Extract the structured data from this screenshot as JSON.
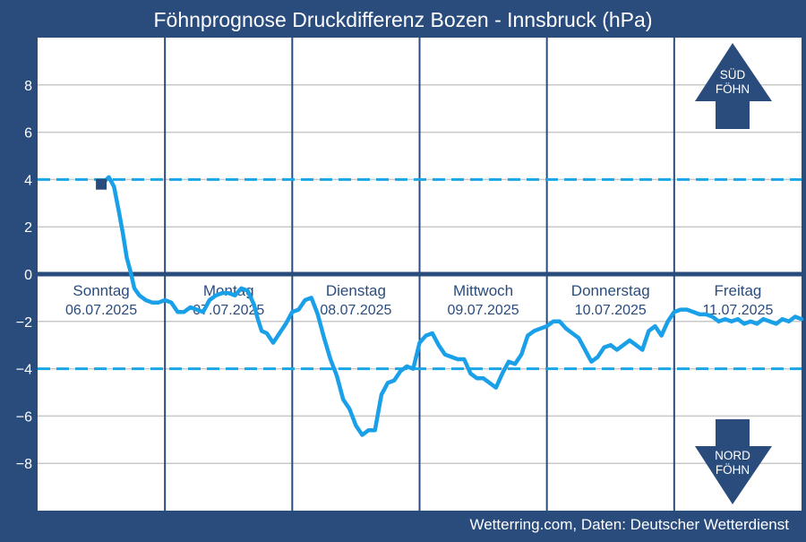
{
  "chart_data": {
    "type": "line",
    "title": "Föhnprognose Druckdifferenz Bozen - Innsbruck (hPa)",
    "ylim": [
      -10,
      10
    ],
    "yticks": [
      -8,
      -6,
      -4,
      -2,
      0,
      2,
      4,
      6,
      8
    ],
    "ytick_labels": [
      "−8",
      "−6",
      "−4",
      "−2",
      "0",
      "2",
      "4",
      "6",
      "8"
    ],
    "xlim": [
      0,
      6
    ],
    "day_separators": [
      1,
      2,
      3,
      4,
      5
    ],
    "days": [
      {
        "name": "Sonntag",
        "date": "06.07.2025",
        "x": 0.5
      },
      {
        "name": "Montag",
        "date": "07.07.2025",
        "x": 1.5
      },
      {
        "name": "Dienstag",
        "date": "08.07.2025",
        "x": 2.5
      },
      {
        "name": "Mittwoch",
        "date": "09.07.2025",
        "x": 3.5
      },
      {
        "name": "Donnerstag",
        "date": "10.07.2025",
        "x": 4.5
      },
      {
        "name": "Freitag",
        "date": "11.07.2025",
        "x": 5.5
      }
    ],
    "threshold_lines": [
      4,
      -4
    ],
    "zero_line": 0,
    "grid": true,
    "current_marker": {
      "x": 0.5,
      "y": 3.8
    },
    "series": [
      {
        "x": [
          0.5,
          0.56,
          0.6,
          0.64,
          0.67,
          0.7,
          0.73,
          0.76,
          0.8,
          0.85,
          0.9,
          0.95,
          1.0,
          1.05,
          1.1,
          1.15,
          1.2,
          1.25,
          1.3,
          1.35,
          1.4,
          1.45,
          1.5,
          1.55,
          1.6,
          1.65,
          1.7,
          1.73,
          1.76,
          1.8,
          1.85,
          1.9,
          1.95,
          2.0,
          2.05,
          2.1,
          2.15,
          2.2,
          2.25,
          2.3,
          2.35,
          2.4,
          2.45,
          2.5,
          2.55,
          2.6,
          2.65,
          2.7,
          2.75,
          2.8,
          2.85,
          2.9,
          2.95,
          3.0,
          3.05,
          3.1,
          3.15,
          3.2,
          3.25,
          3.3,
          3.35,
          3.4,
          3.45,
          3.5,
          3.55,
          3.6,
          3.65,
          3.7,
          3.75,
          3.8,
          3.85,
          3.9,
          3.95,
          4.0,
          4.05,
          4.1,
          4.15,
          4.2,
          4.25,
          4.3,
          4.35,
          4.4,
          4.45,
          4.5,
          4.55,
          4.6,
          4.65,
          4.7,
          4.75,
          4.8,
          4.85,
          4.9,
          4.95,
          5.0,
          5.05,
          5.1,
          5.15,
          5.2,
          5.25,
          5.3,
          5.35,
          5.4,
          5.45,
          5.5,
          5.55,
          5.6,
          5.65,
          5.7,
          5.75,
          5.8,
          5.85,
          5.9,
          5.95,
          6.0
        ],
        "values": [
          3.8,
          4.1,
          3.7,
          2.6,
          1.7,
          0.7,
          0.1,
          -0.6,
          -0.9,
          -1.1,
          -1.2,
          -1.2,
          -1.1,
          -1.2,
          -1.6,
          -1.6,
          -1.4,
          -1.5,
          -1.6,
          -1.1,
          -0.9,
          -0.8,
          -0.8,
          -0.9,
          -0.6,
          -0.7,
          -1.3,
          -1.9,
          -2.4,
          -2.5,
          -2.9,
          -2.5,
          -2.1,
          -1.6,
          -1.5,
          -1.1,
          -1.0,
          -1.7,
          -2.7,
          -3.6,
          -4.3,
          -5.3,
          -5.7,
          -6.4,
          -6.8,
          -6.6,
          -6.6,
          -5.1,
          -4.6,
          -4.5,
          -4.1,
          -3.9,
          -4.0,
          -2.9,
          -2.6,
          -2.5,
          -3.0,
          -3.4,
          -3.5,
          -3.6,
          -3.6,
          -4.2,
          -4.4,
          -4.4,
          -4.6,
          -4.8,
          -4.2,
          -3.7,
          -3.8,
          -3.4,
          -2.6,
          -2.4,
          -2.3,
          -2.2,
          -2.0,
          -2.0,
          -2.3,
          -2.5,
          -2.7,
          -3.2,
          -3.7,
          -3.5,
          -3.1,
          -3.0,
          -3.2,
          -3.0,
          -2.8,
          -3.0,
          -3.2,
          -2.4,
          -2.2,
          -2.6,
          -2.0,
          -1.6,
          -1.5,
          -1.5,
          -1.6,
          -1.7,
          -1.7,
          -1.8,
          -2.0,
          -1.9,
          -2.0,
          -1.9,
          -2.1,
          -2.0,
          -2.1,
          -1.9,
          -2.0,
          -2.1,
          -1.9,
          -2.0,
          -1.8,
          -1.9
        ]
      }
    ],
    "sued_foehn_label": [
      "SÜD",
      "FÖHN"
    ],
    "nord_foehn_label": [
      "NORD",
      "FÖHN"
    ],
    "source": "Wetterring.com, Daten: Deutscher Wetterdienst",
    "colors": {
      "frame": "#2a4c7d",
      "plot_bg": "#ffffff",
      "grid": "#c8c8c8",
      "line": "#1aa0e8",
      "threshold": "#1aa6e6",
      "zero_line": "#2a4c7d",
      "separator": "#2a4c7d",
      "day_text": "#2a4c7d",
      "arrow": "#2a4c7d",
      "marker": "#2a4c7d"
    }
  }
}
